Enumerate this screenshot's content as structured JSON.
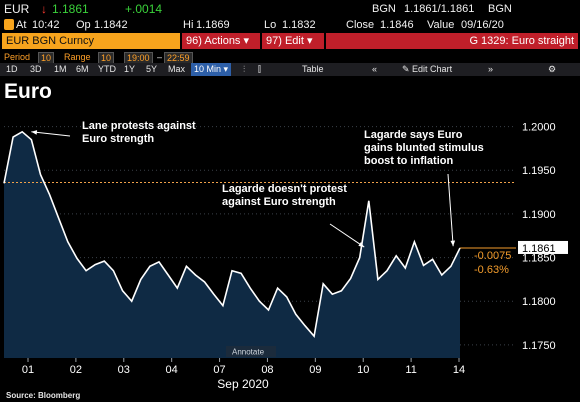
{
  "header": {
    "ticker": "EUR",
    "arrow": "↓",
    "last": "1.1861",
    "change": "+.0014",
    "source": "BGN",
    "bid_ask": "1.1861/1.1861",
    "source2": "BGN",
    "at_label": "At",
    "time": "10:42",
    "op_label": "Op",
    "open": "1.1842",
    "hi_label": "Hi",
    "high": "1.1869",
    "lo_label": "Lo",
    "low": "1.1832",
    "close_label": "Close",
    "close": "1.1846",
    "value_label": "Value",
    "value_date": "09/16/20"
  },
  "toolbar": {
    "security": "EUR BGN Curncy",
    "actions_num": "96)",
    "actions": "Actions",
    "edit_num": "97)",
    "edit": "Edit",
    "chart_title": "G 1329: Euro straight"
  },
  "period_bar": {
    "period_label": "Period",
    "period_value": "10",
    "range_label": "Range",
    "range_value": "10",
    "from": "19:00",
    "to": "22:59"
  },
  "timebar": {
    "ranges": [
      "1D",
      "3D",
      "1M",
      "6M",
      "YTD",
      "1Y",
      "5Y",
      "Max"
    ],
    "interval": "10 Min",
    "table": "Table",
    "edit_chart": "Edit Chart",
    "annotate": "Annotate"
  },
  "colors": {
    "background": "#000000",
    "line": "#ffffff",
    "fill": "#0f2a44",
    "amber": "#f7a41d",
    "red": "#c01f2a",
    "change_orange": "#f39c2c"
  },
  "chart_data": {
    "type": "area",
    "title": "Euro",
    "xlabel": "Sep 2020",
    "ylim": [
      1.1735,
      1.2035
    ],
    "x_ticks": [
      "01",
      "02",
      "03",
      "04",
      "07",
      "08",
      "09",
      "10",
      "11",
      "14"
    ],
    "y_ticks": [
      "1.2000",
      "1.1950",
      "1.1900",
      "1.1850",
      "1.1800",
      "1.1750"
    ],
    "series": [
      {
        "x": [
          0,
          0.2,
          0.4,
          0.6,
          0.8,
          1,
          1.2,
          1.4,
          1.6,
          1.8,
          2,
          2.2,
          2.4,
          2.6,
          2.8,
          3,
          3.2,
          3.4,
          3.6,
          3.8,
          4,
          4.2,
          4.4,
          4.6,
          4.8,
          5,
          5.2,
          5.4,
          5.6,
          5.8,
          6,
          6.2,
          6.4,
          6.6,
          6.8,
          7,
          7.2,
          7.4,
          7.6,
          7.8,
          8,
          8.2,
          8.4,
          8.6,
          8.8,
          9,
          9.2,
          9.4,
          9.6,
          9.8,
          10
        ],
        "values": [
          1.1935,
          1.1988,
          1.1994,
          1.1985,
          1.1945,
          1.1922,
          1.1895,
          1.1868,
          1.1849,
          1.1835,
          1.1842,
          1.1846,
          1.1835,
          1.1812,
          1.18,
          1.1825,
          1.184,
          1.1845,
          1.183,
          1.1815,
          1.184,
          1.183,
          1.1822,
          1.1808,
          1.1795,
          1.1835,
          1.1832,
          1.1815,
          1.18,
          1.179,
          1.1815,
          1.1805,
          1.1785,
          1.1772,
          1.176,
          1.182,
          1.1808,
          1.1812,
          1.1826,
          1.185,
          1.1915,
          1.1825,
          1.1835,
          1.1852,
          1.1838,
          1.1868,
          1.1841,
          1.1848,
          1.183,
          1.184,
          1.1861
        ]
      }
    ],
    "reference_line": 1.1936,
    "last_value": "1.1861",
    "change_abs": "-0.0075",
    "change_pct": "-0.63%",
    "annotations": [
      {
        "text": [
          "Lane protests against",
          "Euro strength"
        ],
        "target_x": 0.6,
        "target_y": 1.1994
      },
      {
        "text": [
          "Lagarde doesn't protest",
          "against Euro strength"
        ],
        "target_x": 7.9,
        "target_y": 1.1862
      },
      {
        "text": [
          "Lagarde says Euro",
          "gains blunted stimulus",
          "boost to inflation"
        ],
        "target_x": 9.85,
        "target_y": 1.1863
      }
    ],
    "source_note": "Source: Bloomberg"
  }
}
